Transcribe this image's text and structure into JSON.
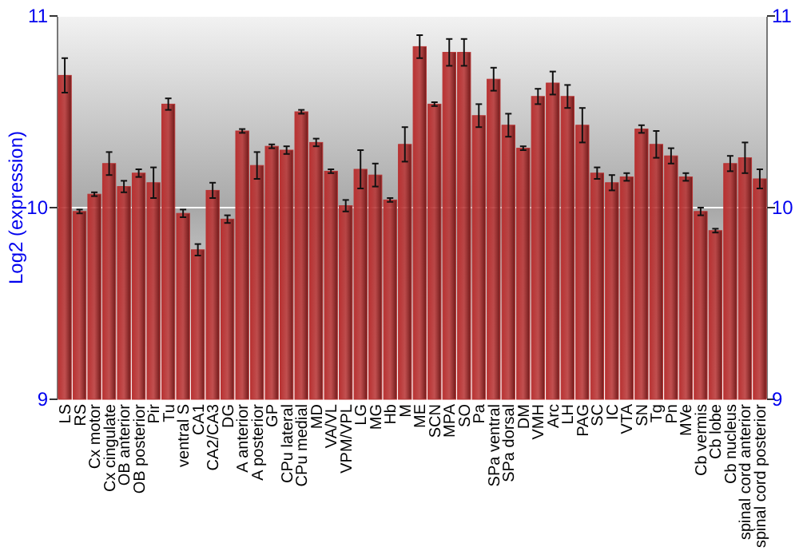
{
  "chart_data": {
    "type": "bar",
    "ylabel": "Log2 (expression)",
    "categories": [
      "LS",
      "RS",
      "Cx motor",
      "Cx cingulate",
      "OB anterior",
      "OB posterior",
      "Pir",
      "Tu",
      "ventral S",
      "CA1",
      "CA2/CA3",
      "DG",
      "A anterior",
      "A posterior",
      "GP",
      "CPu lateral",
      "CPu medial",
      "MD",
      "VA/VL",
      "VPM/VPL",
      "LG",
      "MG",
      "Hb",
      "M",
      "ME",
      "SCN",
      "MPA",
      "SO",
      "Pa",
      "SPa ventral",
      "SPa dorsal",
      "DM",
      "VMH",
      "Arc",
      "LH",
      "PAG",
      "SC",
      "IC",
      "VTA",
      "SN",
      "Tg",
      "Pn",
      "MVe",
      "Cb vermis",
      "Cb lobe",
      "Cb nucleus",
      "spinal cord anterior",
      "spinal cord posterior"
    ],
    "values": [
      10.69,
      9.98,
      10.07,
      10.23,
      10.11,
      10.18,
      10.13,
      10.54,
      9.97,
      9.78,
      10.09,
      9.94,
      10.4,
      10.22,
      10.32,
      10.3,
      10.5,
      10.34,
      10.19,
      10.01,
      10.2,
      10.17,
      10.04,
      10.33,
      10.84,
      10.54,
      10.81,
      10.81,
      10.48,
      10.67,
      10.43,
      10.31,
      10.58,
      10.65,
      10.58,
      10.43,
      10.18,
      10.13,
      10.16,
      10.41,
      10.33,
      10.27,
      10.16,
      9.98,
      9.88,
      10.23,
      10.26,
      10.15
    ],
    "errors": [
      0.09,
      0.01,
      0.01,
      0.06,
      0.03,
      0.02,
      0.08,
      0.03,
      0.02,
      0.03,
      0.04,
      0.02,
      0.01,
      0.07,
      0.01,
      0.02,
      0.01,
      0.02,
      0.01,
      0.03,
      0.1,
      0.06,
      0.01,
      0.09,
      0.06,
      0.01,
      0.07,
      0.07,
      0.06,
      0.06,
      0.06,
      0.01,
      0.04,
      0.06,
      0.06,
      0.09,
      0.03,
      0.04,
      0.02,
      0.02,
      0.07,
      0.04,
      0.02,
      0.02,
      0.01,
      0.04,
      0.08,
      0.05
    ],
    "color": "#b83232",
    "ylim": [
      9,
      11
    ],
    "yticks": [
      9,
      10,
      11
    ],
    "y2lim": [
      9,
      11
    ],
    "y2ticks": [
      9,
      10,
      11
    ],
    "grid": "y"
  }
}
